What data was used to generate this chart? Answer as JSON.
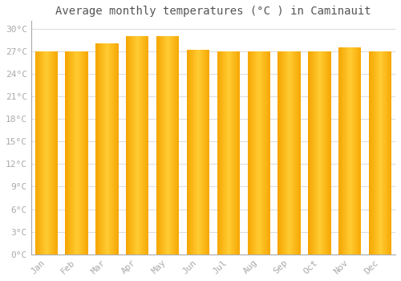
{
  "title": "Average monthly temperatures (°C ) in Caminauit",
  "months": [
    "Jan",
    "Feb",
    "Mar",
    "Apr",
    "May",
    "Jun",
    "Jul",
    "Aug",
    "Sep",
    "Oct",
    "Nov",
    "Dec"
  ],
  "values": [
    27,
    27,
    28,
    29,
    29,
    27.2,
    27,
    27,
    27,
    27,
    27.5,
    27
  ],
  "bar_color_center": "#FFCC33",
  "bar_color_edge": "#F5A500",
  "background_color": "#FFFFFF",
  "grid_color": "#DDDDDD",
  "ytick_labels": [
    "0°C",
    "3°C",
    "6°C",
    "9°C",
    "12°C",
    "15°C",
    "18°C",
    "21°C",
    "24°C",
    "27°C",
    "30°C"
  ],
  "ytick_values": [
    0,
    3,
    6,
    9,
    12,
    15,
    18,
    21,
    24,
    27,
    30
  ],
  "ylim": [
    0,
    31
  ],
  "title_fontsize": 10,
  "tick_fontsize": 8,
  "font_color": "#AAAAAA",
  "spine_color": "#AAAAAA",
  "bar_width": 0.75
}
